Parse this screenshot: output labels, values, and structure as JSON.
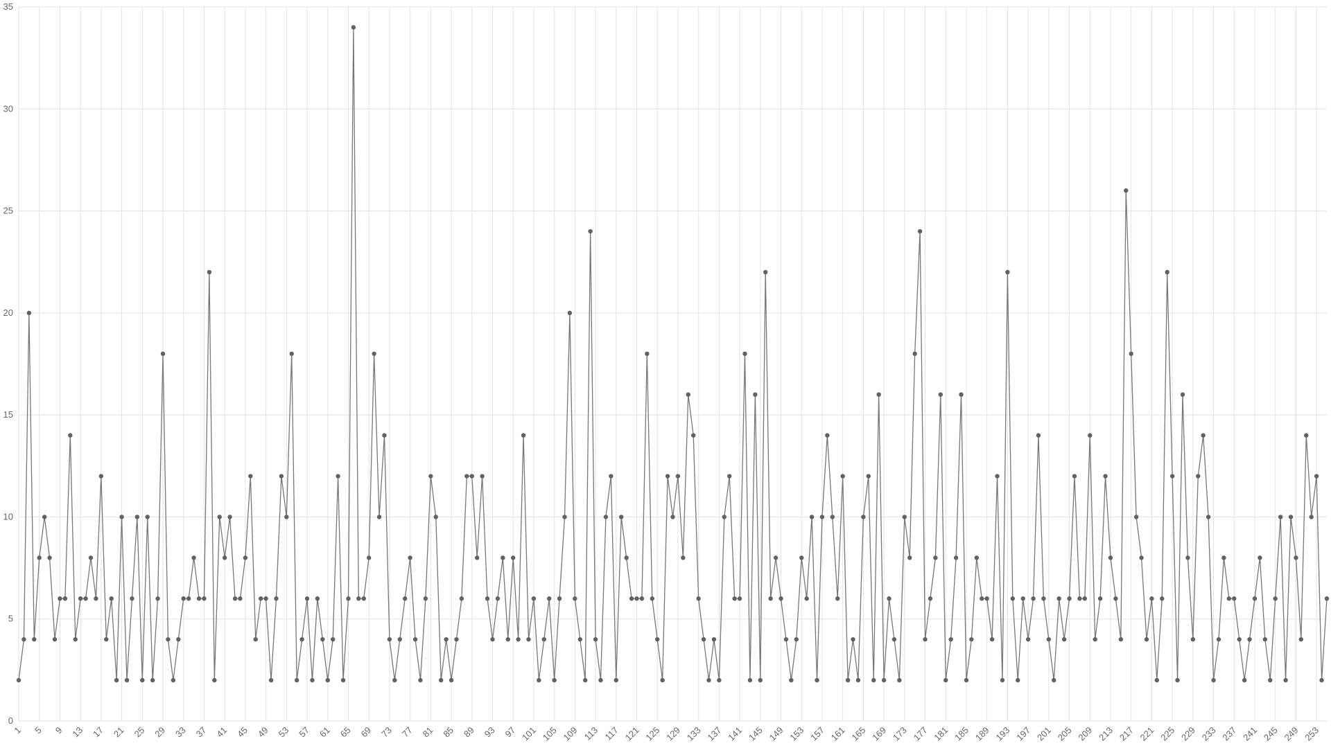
{
  "chart_data": {
    "type": "line",
    "categories": [
      1,
      null,
      null,
      null,
      5,
      null,
      null,
      null,
      9,
      null,
      null,
      null,
      13,
      null,
      null,
      null,
      17,
      null,
      null,
      null,
      21,
      null,
      null,
      null,
      25,
      null,
      null,
      null,
      29,
      null,
      null,
      null,
      33,
      null,
      null,
      null,
      37,
      null,
      null,
      null,
      41,
      null,
      null,
      null,
      45,
      null,
      null,
      null,
      49,
      null,
      null,
      null,
      53,
      null,
      null,
      null,
      57,
      null,
      null,
      null,
      61,
      null,
      null,
      null,
      65,
      null,
      null,
      null,
      69,
      null,
      null,
      null,
      73,
      null,
      null,
      null,
      77,
      null,
      null,
      null,
      81,
      null,
      null,
      null,
      85,
      null,
      null,
      null,
      89,
      null,
      null,
      null,
      93,
      null,
      null,
      null,
      97,
      null,
      null,
      null,
      101,
      null,
      null,
      null,
      105,
      null,
      null,
      null,
      109,
      null,
      null,
      null,
      113,
      null,
      null,
      null,
      117,
      null,
      null,
      null,
      121,
      null,
      null,
      null,
      125,
      null,
      null,
      null,
      129,
      null,
      null,
      null,
      133,
      null,
      null,
      null,
      137,
      null,
      null,
      null,
      141,
      null,
      null,
      null,
      145,
      null,
      null,
      null,
      149,
      null,
      null,
      null,
      153,
      null,
      null,
      null,
      157,
      null,
      null,
      null,
      161,
      null,
      null,
      null,
      165,
      null,
      null,
      null,
      169,
      null,
      null,
      null,
      173,
      null,
      null,
      null,
      177,
      null,
      null,
      null,
      181,
      null,
      null,
      null,
      185,
      null,
      null,
      null,
      189,
      null,
      null,
      null,
      193,
      null,
      null,
      null,
      197,
      null,
      null,
      null,
      201,
      null,
      null,
      null,
      205,
      null,
      null,
      null,
      209,
      null,
      null,
      null,
      213,
      null,
      null,
      null,
      217,
      null,
      null,
      null,
      221,
      null,
      null,
      null,
      225,
      null,
      null,
      null,
      229,
      null,
      null,
      null,
      233,
      null,
      null,
      null,
      237,
      null,
      null,
      null,
      241,
      null,
      null,
      null,
      245,
      null,
      null,
      null,
      249,
      null,
      null,
      null,
      253,
      null,
      null
    ],
    "series": [
      {
        "color": "#777777",
        "marker_color": "#616161",
        "values": [
          2,
          4,
          20,
          4,
          8,
          10,
          8,
          4,
          6,
          6,
          14,
          4,
          6,
          6,
          8,
          6,
          12,
          4,
          6,
          2,
          10,
          2,
          6,
          10,
          2,
          10,
          2,
          6,
          18,
          4,
          2,
          4,
          6,
          6,
          8,
          6,
          6,
          22,
          2,
          10,
          8,
          10,
          6,
          6,
          8,
          12,
          4,
          6,
          6,
          2,
          6,
          12,
          10,
          18,
          2,
          4,
          6,
          2,
          6,
          4,
          2,
          4,
          12,
          2,
          6,
          34,
          6,
          6,
          8,
          18,
          10,
          14,
          4,
          2,
          4,
          6,
          8,
          4,
          2,
          6,
          12,
          10,
          2,
          4,
          2,
          4,
          6,
          12,
          12,
          8,
          12,
          6,
          4,
          6,
          8,
          4,
          8,
          4,
          14,
          4,
          6,
          2,
          4,
          6,
          2,
          6,
          10,
          20,
          6,
          4,
          2,
          24,
          4,
          2,
          10,
          12,
          2,
          10,
          8,
          6,
          6,
          6,
          18,
          6,
          4,
          2,
          12,
          10,
          12,
          8,
          16,
          14,
          6,
          4,
          2,
          4,
          2,
          10,
          12,
          6,
          6,
          18,
          2,
          16,
          2,
          22,
          6,
          8,
          6,
          4,
          2,
          4,
          8,
          6,
          10,
          2,
          10,
          14,
          10,
          6,
          12,
          2,
          4,
          2,
          10,
          12,
          2,
          16,
          2,
          6,
          4,
          2,
          10,
          8,
          18,
          24,
          4,
          6,
          8,
          16,
          2,
          4,
          8,
          16,
          2,
          4,
          8,
          6,
          6,
          4,
          12,
          2,
          22,
          6,
          2,
          6,
          4,
          6,
          14,
          6,
          4,
          2,
          6,
          4,
          6,
          12,
          6,
          6,
          14,
          4,
          6,
          12,
          8,
          6,
          4,
          26,
          18,
          10,
          8,
          4,
          6,
          2,
          6,
          22,
          12,
          2,
          16,
          8,
          4,
          12,
          14,
          10,
          2,
          4,
          8,
          6,
          6,
          4,
          2,
          4,
          6,
          8,
          4,
          2,
          6,
          10,
          2,
          10,
          8,
          4,
          14,
          10,
          12,
          2,
          6
        ]
      }
    ],
    "ylim": [
      0,
      35
    ],
    "yticks": [
      0,
      5,
      10,
      15,
      20,
      25,
      30,
      35
    ],
    "grid": true
  }
}
